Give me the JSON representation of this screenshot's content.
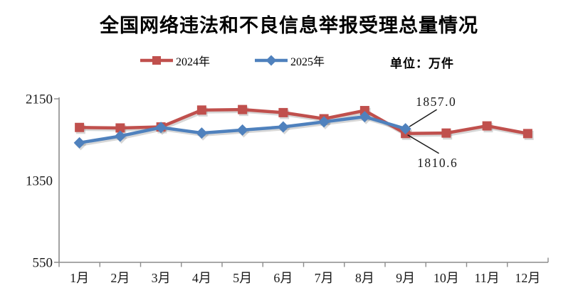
{
  "title": "全国网络违法和不良信息举报受理总量情况",
  "legend": {
    "items": [
      {
        "label": "2024年",
        "marker": "square-on-line",
        "color": "#C0504D"
      },
      {
        "label": "2025年",
        "marker": "diamond-on-line",
        "color": "#4F81BD"
      }
    ],
    "unit_label": "单位：万件"
  },
  "colors": {
    "series_2024": "#C0504D",
    "series_2025": "#4F81BD",
    "axis": "#8C8C8C",
    "tick_text": "#1a1a1a",
    "annotation_text": "#1a1a1a",
    "background": "#ffffff"
  },
  "chart_data": {
    "type": "line",
    "title": "全国网络违法和不良信息举报受理总量情况",
    "unit": "万件",
    "categories": [
      "1月",
      "2月",
      "3月",
      "4月",
      "5月",
      "6月",
      "7月",
      "8月",
      "9月",
      "10月",
      "11月",
      "12月"
    ],
    "series": [
      {
        "name": "2024年",
        "color": "#C0504D",
        "marker": "square",
        "values": [
          1870,
          1865,
          1875,
          2040,
          2045,
          2015,
          1955,
          2035,
          1810.6,
          1815,
          1885,
          1810
        ]
      },
      {
        "name": "2025年",
        "color": "#4F81BD",
        "marker": "diamond",
        "values": [
          1720,
          1785,
          1870,
          1815,
          1845,
          1875,
          1925,
          1975,
          1857.0
        ]
      }
    ],
    "ylim": [
      550,
      2150
    ],
    "yticks": [
      550,
      1350,
      2150
    ],
    "grid": false,
    "legend_position": "top",
    "annotations": [
      {
        "text": "1857.0",
        "series_index": 1,
        "category_index": 8,
        "value": 1857.0,
        "placement": "above-right"
      },
      {
        "text": "1810.6",
        "series_index": 0,
        "category_index": 8,
        "value": 1810.6,
        "placement": "below-right"
      }
    ]
  }
}
